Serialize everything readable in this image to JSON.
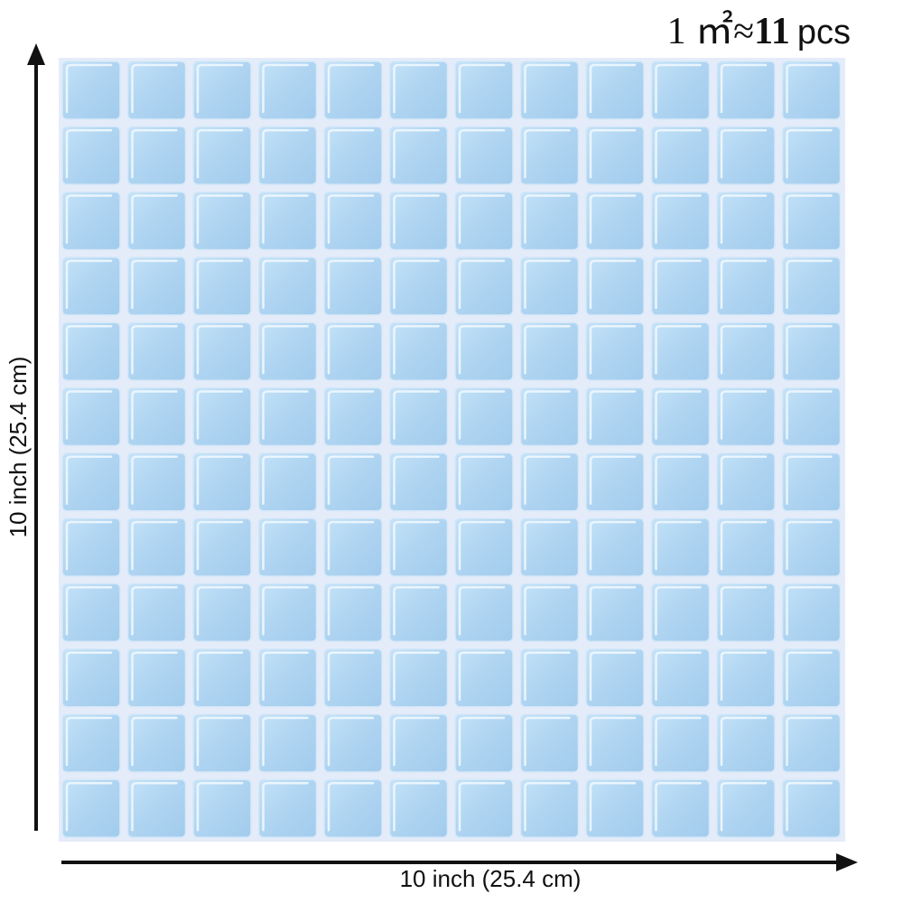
{
  "header": {
    "area": "1 ㎡≈",
    "count": "11",
    "unit": "pcs"
  },
  "dimensions": {
    "height_label": "10 inch (25.4 cm)",
    "width_label": "10 inch (25.4 cm)"
  }
}
